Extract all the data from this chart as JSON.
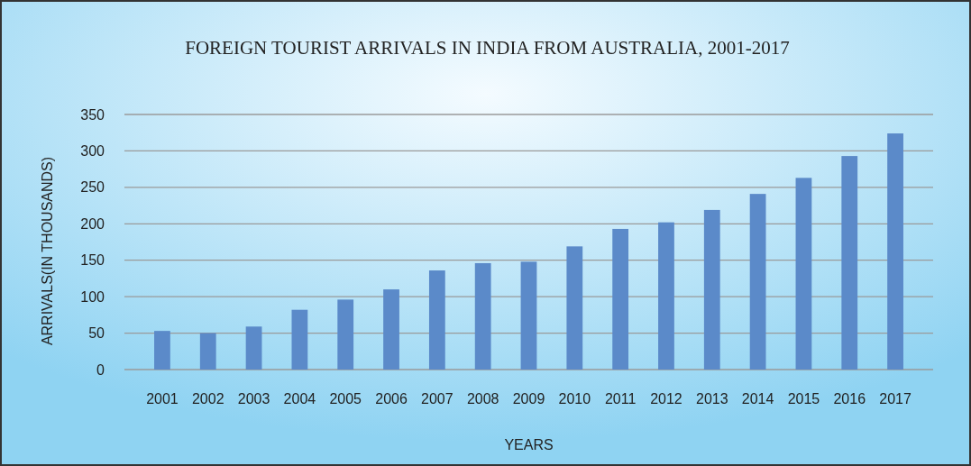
{
  "chart_data": {
    "type": "bar",
    "title": "FOREIGN TOURIST ARRIVALS IN INDIA FROM AUSTRALIA, 2001-2017",
    "xlabel": "YEARS",
    "ylabel": "ARRIVALS(IN THOUSANDS)",
    "categories": [
      "2001",
      "2002",
      "2003",
      "2004",
      "2005",
      "2006",
      "2007",
      "2008",
      "2009",
      "2010",
      "2011",
      "2012",
      "2013",
      "2014",
      "2015",
      "2016",
      "2017"
    ],
    "values": [
      53,
      50,
      59,
      82,
      96,
      110,
      136,
      146,
      148,
      169,
      193,
      202,
      219,
      241,
      263,
      293,
      324
    ],
    "color": "#5b8ac9",
    "ylim": [
      0,
      350
    ],
    "yticks": [
      0,
      50,
      100,
      150,
      200,
      250,
      300,
      350
    ],
    "grid": "y"
  }
}
